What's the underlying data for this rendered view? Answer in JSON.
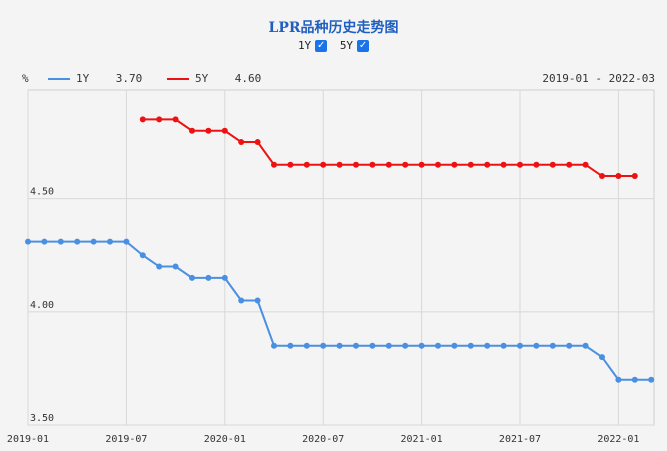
{
  "title": "LPR品种历史走势图",
  "toggles": [
    {
      "label": "1Y",
      "checked": true
    },
    {
      "label": "5Y",
      "checked": true
    }
  ],
  "y_unit": "%",
  "legend": [
    {
      "name": "1Y",
      "value": "3.70",
      "color": "#4a90e2"
    },
    {
      "name": "5Y",
      "value": "4.60",
      "color": "#ee1111"
    }
  ],
  "date_range": "2019-01 - 2022-03",
  "chart_data": {
    "type": "line",
    "x_ticks": [
      "2019-01",
      "2019-07",
      "2020-01",
      "2020-07",
      "2021-01",
      "2021-07",
      "2022-01"
    ],
    "y_ticks": [
      "3.50",
      "4.00",
      "4.50"
    ],
    "ylim": [
      3.5,
      4.98
    ],
    "grid": true,
    "legend_position": "top",
    "series": [
      {
        "name": "1Y",
        "color": "#4a90e2",
        "start": "2019-01",
        "values": [
          4.31,
          4.31,
          4.31,
          4.31,
          4.31,
          4.31,
          4.31,
          4.25,
          4.2,
          4.2,
          4.15,
          4.15,
          4.15,
          4.05,
          4.05,
          3.85,
          3.85,
          3.85,
          3.85,
          3.85,
          3.85,
          3.85,
          3.85,
          3.85,
          3.85,
          3.85,
          3.85,
          3.85,
          3.85,
          3.85,
          3.85,
          3.85,
          3.85,
          3.85,
          3.85,
          3.8,
          3.7,
          3.7,
          3.7
        ]
      },
      {
        "name": "5Y",
        "color": "#ee1111",
        "start": "2019-08",
        "values": [
          4.85,
          4.85,
          4.85,
          4.8,
          4.8,
          4.8,
          4.75,
          4.75,
          4.65,
          4.65,
          4.65,
          4.65,
          4.65,
          4.65,
          4.65,
          4.65,
          4.65,
          4.65,
          4.65,
          4.65,
          4.65,
          4.65,
          4.65,
          4.65,
          4.65,
          4.65,
          4.65,
          4.65,
          4.6,
          4.6,
          4.6
        ]
      }
    ]
  }
}
